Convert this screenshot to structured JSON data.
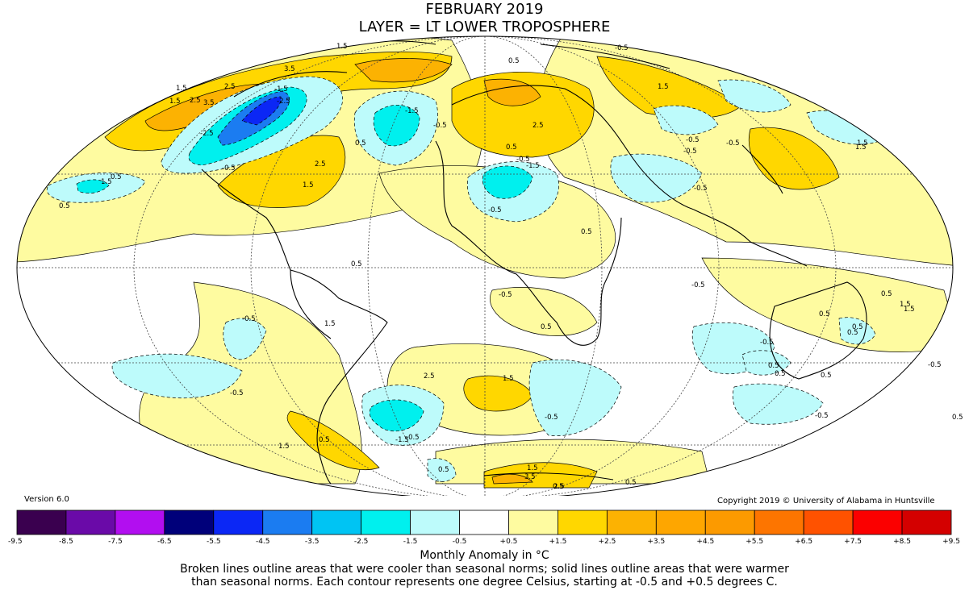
{
  "title": "FEBRUARY 2019",
  "subtitle": "LAYER = LT LOWER TROPOSPHERE",
  "version": "Version 6.0",
  "copyright": "Copyright 2019 © University of Alabama in Huntsville",
  "colorbar": {
    "tick_labels": [
      "-9.5",
      "-8.5",
      "-7.5",
      "-6.5",
      "-5.5",
      "-4.5",
      "-3.5",
      "-2.5",
      "-1.5",
      "-0.5",
      "+0.5",
      "+1.5",
      "+2.5",
      "+3.5",
      "+4.5",
      "+5.5",
      "+6.5",
      "+7.5",
      "+8.5",
      "+9.5"
    ],
    "colors": [
      "#3a004f",
      "#6a0aa8",
      "#b20ef0",
      "#00007a",
      "#0b27f5",
      "#1b7cf1",
      "#00c4f3",
      "#00f0ee",
      "#bdfbfb",
      "#ffffff",
      "#fefba0",
      "#ffd700",
      "#fcb202",
      "#fea600",
      "#fc9a00",
      "#fd7500",
      "#ff5200",
      "#fb0000",
      "#d40000"
    ]
  },
  "units": "Monthly Anomaly in °C",
  "note_line1": "Broken lines outline areas that were cooler than seasonal norms; solid lines outline areas that were warmer",
  "note_line2": "than seasonal norms. Each contour represents one degree Celsius, starting at -0.5 and +0.5 degrees C.",
  "contour_labels": [
    "1.5",
    "3.5",
    "2.5",
    "1.5",
    "2.5",
    "1.5",
    "0.5",
    "-0.5",
    "-1.5",
    "-2.5",
    "-0.5",
    "-1.5",
    "-2.5",
    "-0.5",
    "1.5",
    "2.5",
    "3.5",
    "2.5",
    "0.5",
    "-0.5",
    "1.5",
    "-0.5",
    "-1.5",
    "0.5",
    "1.5",
    "0.5",
    "0.5",
    "-0.5",
    "0.5",
    "-0.5",
    "1.5",
    "0.5",
    "-0.5",
    "1.5",
    "-0.5",
    "1.5",
    "2.5",
    "0.5",
    "0.5",
    "-0.5",
    "1.5",
    "-0.5",
    "0.5",
    "-0.5",
    "-1.5",
    "0.5",
    "1.5",
    "0.5",
    "0.5",
    "1.5",
    "1.5",
    "3.5",
    "2.5",
    "0.5",
    "-0.5",
    "0.5",
    "0.5",
    "0.5",
    "-0.5",
    "0.5",
    "0.5",
    "1.5",
    "-0.5",
    "0.5",
    "-0.5",
    "-0.5",
    "-0.5"
  ]
}
